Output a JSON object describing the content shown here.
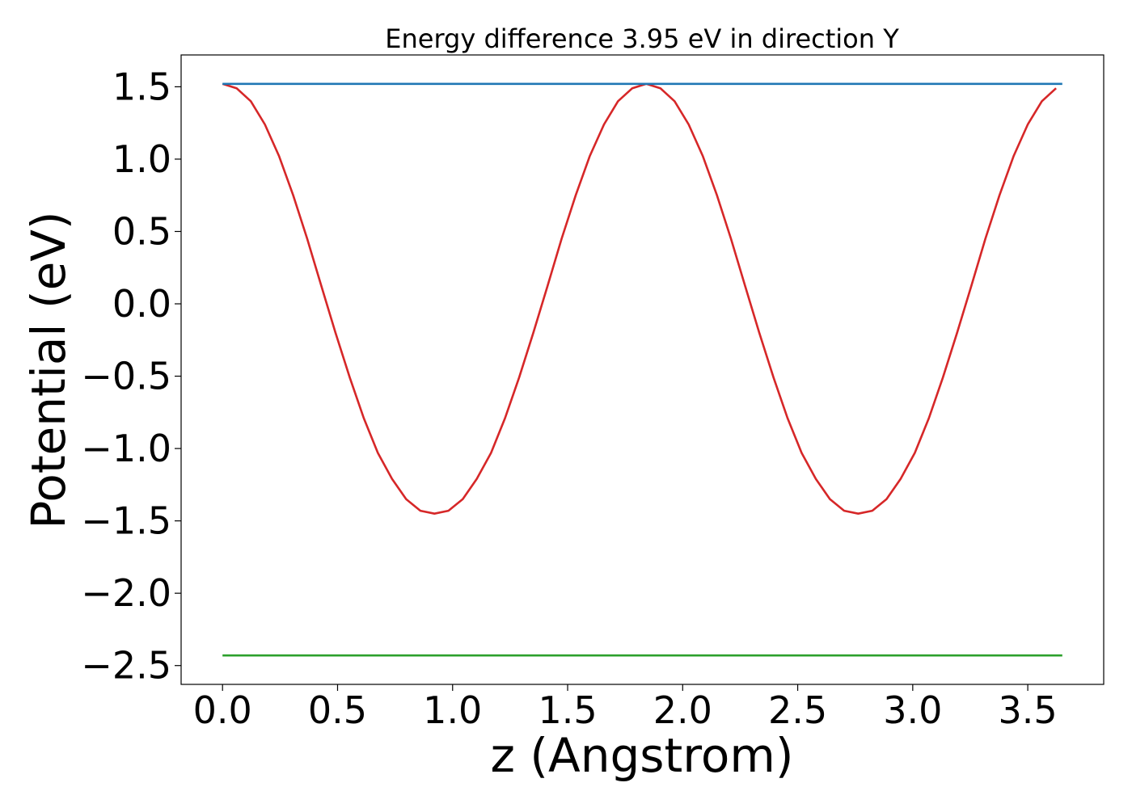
{
  "chart_data": {
    "type": "line",
    "title": "Energy difference 3.95 eV in direction Y",
    "xlabel": "z (Angstrom)",
    "ylabel": "Potential (eV)",
    "xlim": [
      -0.18,
      3.83
    ],
    "ylim": [
      -2.63,
      1.72
    ],
    "xticks": [
      0.0,
      0.5,
      1.0,
      1.5,
      2.0,
      2.5,
      3.0,
      3.5
    ],
    "xtick_labels": [
      "0.0",
      "0.5",
      "1.0",
      "1.5",
      "2.0",
      "2.5",
      "3.0",
      "3.5"
    ],
    "yticks": [
      1.5,
      1.0,
      0.5,
      0.0,
      -0.5,
      -1.0,
      -1.5,
      -2.0,
      -2.5
    ],
    "ytick_labels": [
      "1.5",
      "1.0",
      "0.5",
      "0.0",
      "−0.5",
      "−1.0",
      "−1.5",
      "−2.0",
      "−2.5"
    ],
    "grid": false,
    "series": [
      {
        "color": "#d62728",
        "x": [
          0.0,
          0.061,
          0.123,
          0.184,
          0.246,
          0.307,
          0.368,
          0.43,
          0.491,
          0.553,
          0.614,
          0.675,
          0.737,
          0.798,
          0.86,
          0.921,
          0.982,
          1.044,
          1.105,
          1.167,
          1.228,
          1.289,
          1.351,
          1.412,
          1.474,
          1.535,
          1.596,
          1.658,
          1.719,
          1.781,
          1.842,
          1.903,
          1.965,
          2.026,
          2.088,
          2.149,
          2.21,
          2.272,
          2.333,
          2.395,
          2.456,
          2.517,
          2.579,
          2.64,
          2.702,
          2.763,
          2.824,
          2.886,
          2.947,
          3.009,
          3.07,
          3.131,
          3.193,
          3.254,
          3.316,
          3.377,
          3.438,
          3.5,
          3.561,
          3.623
        ],
        "y": [
          1.52,
          1.49,
          1.4,
          1.24,
          1.02,
          0.75,
          0.45,
          0.12,
          -0.2,
          -0.51,
          -0.79,
          -1.03,
          -1.21,
          -1.35,
          -1.43,
          -1.45,
          -1.43,
          -1.35,
          -1.21,
          -1.03,
          -0.79,
          -0.51,
          -0.2,
          0.12,
          0.45,
          0.75,
          1.02,
          1.24,
          1.4,
          1.49,
          1.52,
          1.49,
          1.4,
          1.24,
          1.02,
          0.75,
          0.45,
          0.12,
          -0.2,
          -0.51,
          -0.79,
          -1.03,
          -1.21,
          -1.35,
          -1.43,
          -1.45,
          -1.43,
          -1.35,
          -1.21,
          -1.03,
          -0.79,
          -0.51,
          -0.2,
          0.12,
          0.45,
          0.75,
          1.02,
          1.24,
          1.4,
          1.49
        ]
      },
      {
        "color": "#1f77b4",
        "x": [
          0.0,
          3.65
        ],
        "y": [
          1.52,
          1.52
        ]
      },
      {
        "color": "#2ca02c",
        "x": [
          0.0,
          3.65
        ],
        "y": [
          -2.43,
          -2.43
        ]
      }
    ]
  }
}
